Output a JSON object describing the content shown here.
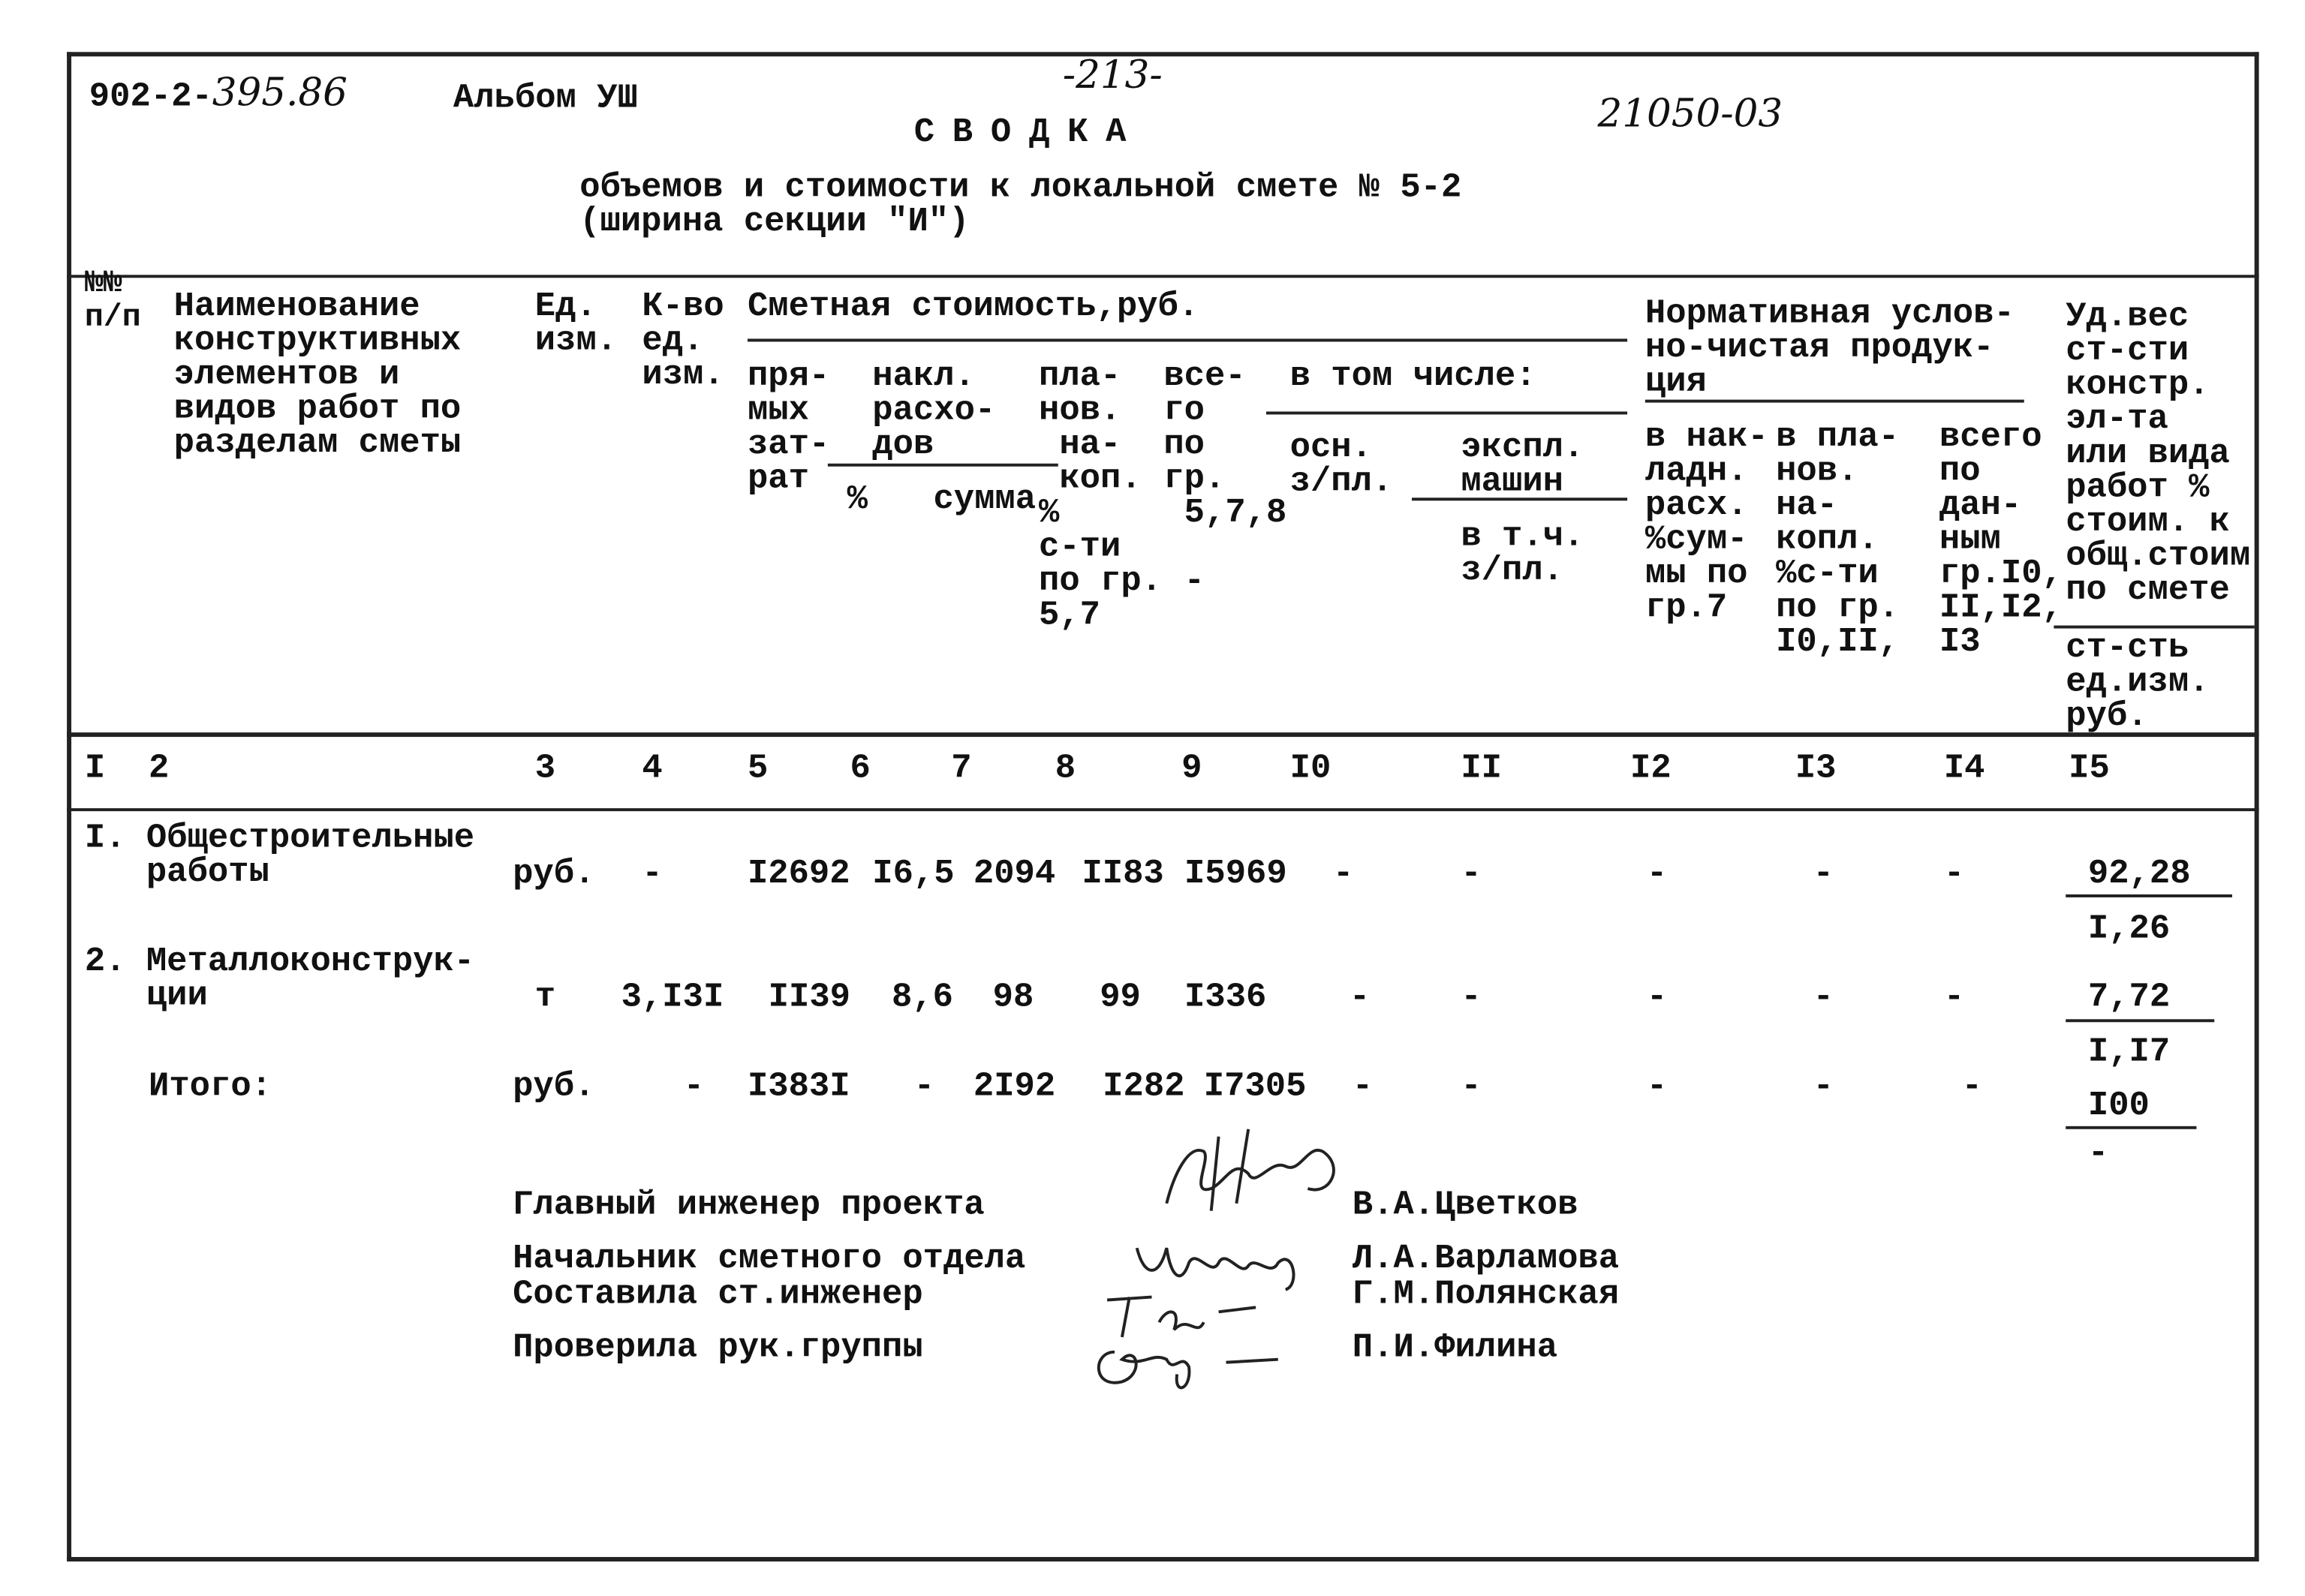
{
  "header": {
    "project_code_printed": "902-2-",
    "project_code_handwritten": "395.86",
    "album": "Альбом УШ",
    "page_number": "-213-",
    "registration_number": "21050-03",
    "title": "СВОДКА",
    "subtitle_line1": "объемов и стоимости к локальной смете № 5-2",
    "subtitle_line2": "(ширина секции \"И\")"
  },
  "table": {
    "headers": {
      "num": "№№\nп/п",
      "name": "Наименование\nконструктивных\nэлементов и\nвидов работ по\nразделам сметы",
      "unit": "Ед.\nизм.",
      "qty": "К-во\nед.\nизм.",
      "estimate_title": "Сметная стоимость,руб.",
      "direct": "пря-\nмых\nзат-\nрат",
      "overhead": "накл.\nрасхо-\nдов",
      "overhead_pct": "%",
      "overhead_sum": "сумма",
      "planned": "пла-\nнов.\n на-\n коп.\n%\nс-ти\nпо гр.\n5,7",
      "total": "все-\nго\nпо\nгр.\n 5,7,8\n\n -",
      "including": "в том числе:",
      "base_wage": "осн.\nз/пл.",
      "machines": "экспл.\nмашин",
      "machines_wage": "в т.ч.\nз/пл.",
      "normative_title": "Нормативная услов-\nно-чистая продук-\nция",
      "norm_overhead": "в нак-\nладн.\nрасх.\n%сум-\nмы по\nгр.7",
      "norm_planned": "в пла-\nнов.\nна-\nкопл.\n%с-ти\nпо гр.\nI0,II,",
      "norm_total": "всего\nпо\nдан-\nным\nгр.I0,\nII,I2,\nI3",
      "share": "Уд.вес\nст-сти\nконстр.\nэл-та\nили вида\nработ %\nстоим. к\nобщ.стоим\nпо смете",
      "unit_cost": "ст-сть\nед.изм.\nруб."
    },
    "column_numbers": [
      "I",
      "2",
      "3",
      "4",
      "5",
      "6",
      "7",
      "8",
      "9",
      "I0",
      "II",
      "I2",
      "I3",
      "I4",
      "I5"
    ],
    "rows": [
      {
        "name": "I. Общестроительные\n   работы",
        "unit": "руб.",
        "qty": "-",
        "direct": "I2692",
        "overhead_pct": "I6,5",
        "overhead_sum": "2094",
        "planned": "II83",
        "total": "I5969",
        "c10": "-",
        "c11": "-",
        "c12": "-",
        "c13": "-",
        "c14": "-",
        "share": "92,28",
        "unit_cost": "I,26"
      },
      {
        "name": "2. Металлоконструк-\n   ции",
        "unit": "т",
        "qty": "3,I3I",
        "direct": "II39",
        "overhead_pct": "8,6",
        "overhead_sum": "98",
        "planned": "99",
        "total": "I336",
        "c10": "-",
        "c11": "-",
        "c12": "-",
        "c13": "-",
        "c14": "-",
        "share": "7,72",
        "unit_cost": "I,I7"
      },
      {
        "name": "Итого:",
        "unit": "руб.",
        "qty": "-",
        "direct": "I383I",
        "overhead_pct": "-",
        "overhead_sum": "2I92",
        "planned": "I282",
        "total": "I7305",
        "c10": "-",
        "c11": "-",
        "c12": "-",
        "c13": "-",
        "c14": "-",
        "share": "I00",
        "unit_cost": "-"
      }
    ]
  },
  "signatures": [
    {
      "role": "Главный инженер проекта",
      "name": "В.А.Цветков"
    },
    {
      "role": "Начальник сметного отдела",
      "name": "Л.А.Варламова"
    },
    {
      "role": "Составила ст.инженер",
      "name": "Г.М.Полянская"
    },
    {
      "role": "Проверила рук.группы",
      "name": "П.И.Филина"
    }
  ]
}
